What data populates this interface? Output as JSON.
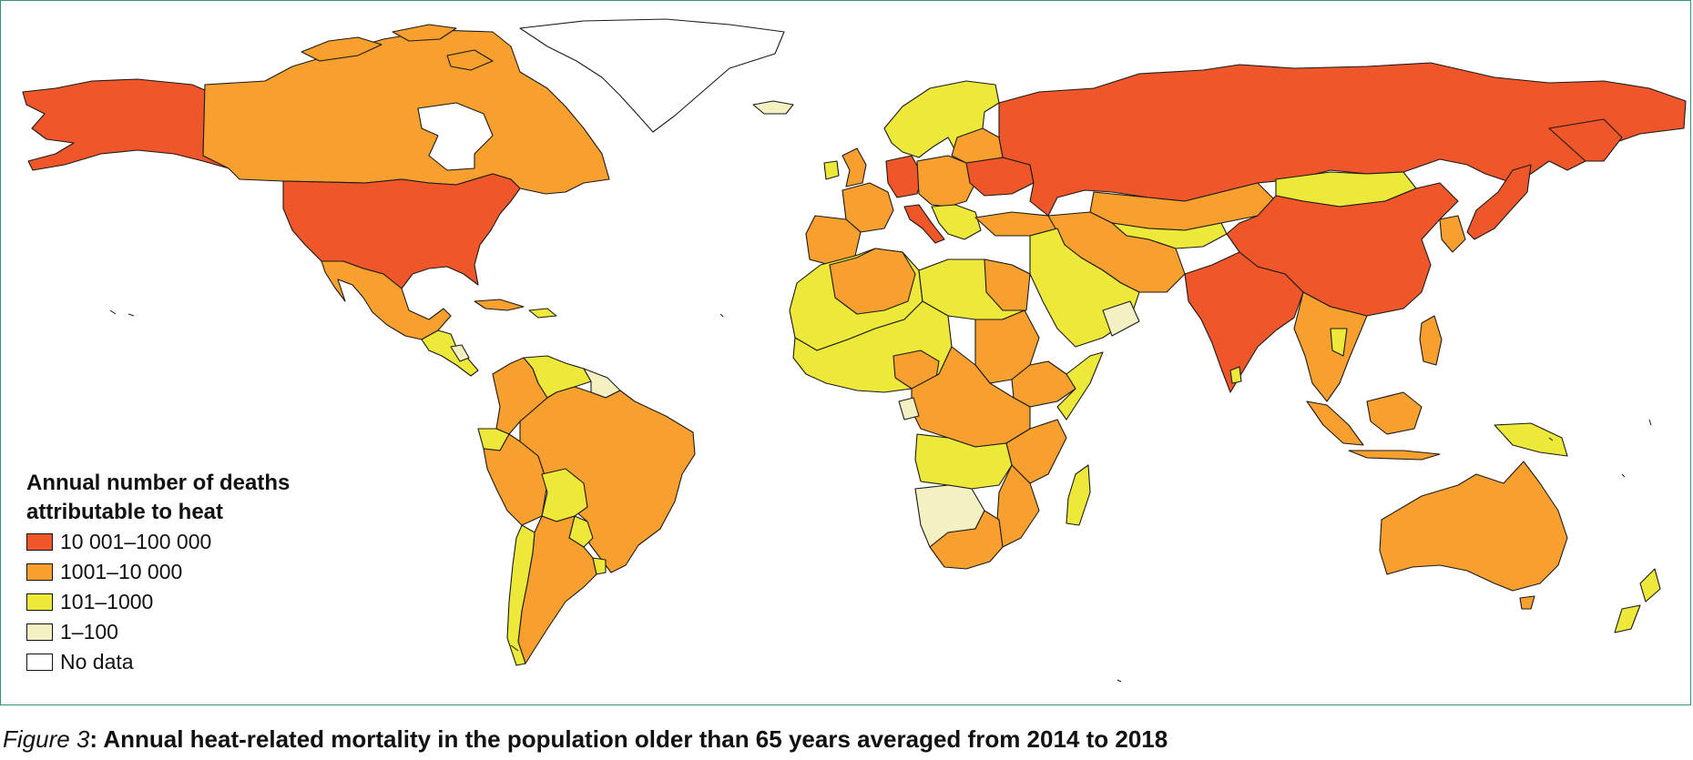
{
  "figure": {
    "label": "Figure 3",
    "separator": ":",
    "caption": " Annual heat-related mortality in the population older than 65 years averaged from 2014 to 2018"
  },
  "legend": {
    "title_line1": "Annual number of deaths",
    "title_line2": "attributable to heat",
    "items": [
      {
        "label": "10 001–100 000",
        "color": "#ef5629"
      },
      {
        "label": "1001–10 000",
        "color": "#f7a02f"
      },
      {
        "label": "101–1000",
        "color": "#ece93a"
      },
      {
        "label": "1–100",
        "color": "#f3f1c2"
      },
      {
        "label": "No data",
        "color": "#ffffff"
      }
    ]
  },
  "colors": {
    "frame": "#3c8f6e",
    "outline": "#1a1a1a"
  }
}
